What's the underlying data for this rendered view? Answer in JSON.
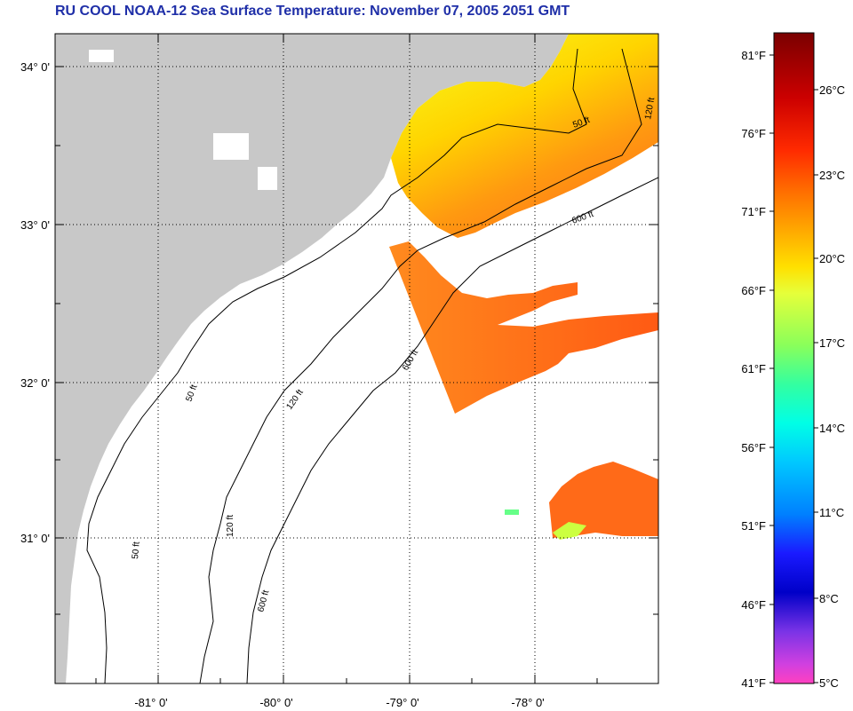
{
  "title": "RU COOL  NOAA-12  Sea Surface Temperature:  November 07, 2005 2051 GMT",
  "map": {
    "lat_ticks": [
      "34° 0'",
      "33° 0'",
      "32° 0'",
      "31° 0'"
    ],
    "lon_ticks": [
      "-81° 0'",
      "-80° 0'",
      "-79° 0'",
      "-78° 0'"
    ],
    "contour_labels": [
      "50 ft",
      "120 ft",
      "600 ft"
    ],
    "colors": {
      "land": "#c8c8c8",
      "no_data": "#ffffff",
      "frame": "#000000"
    }
  },
  "colorbar": {
    "fahrenheit": [
      "81°F",
      "76°F",
      "71°F",
      "66°F",
      "61°F",
      "56°F",
      "51°F",
      "46°F",
      "41°F"
    ],
    "celsius": [
      "26°C",
      "23°C",
      "20°C",
      "17°C",
      "14°C",
      "11°C",
      "8°C",
      "5°C"
    ],
    "gradient": [
      "#7a0000",
      "#cc0000",
      "#ff2a00",
      "#ff6a00",
      "#ffa500",
      "#ffe000",
      "#e6ff3a",
      "#8aff5a",
      "#33ffa0",
      "#00ffe6",
      "#00c8ff",
      "#0080ff",
      "#1a1aff",
      "#0000c8",
      "#7a33e6",
      "#d040e0",
      "#ff40c0"
    ]
  }
}
